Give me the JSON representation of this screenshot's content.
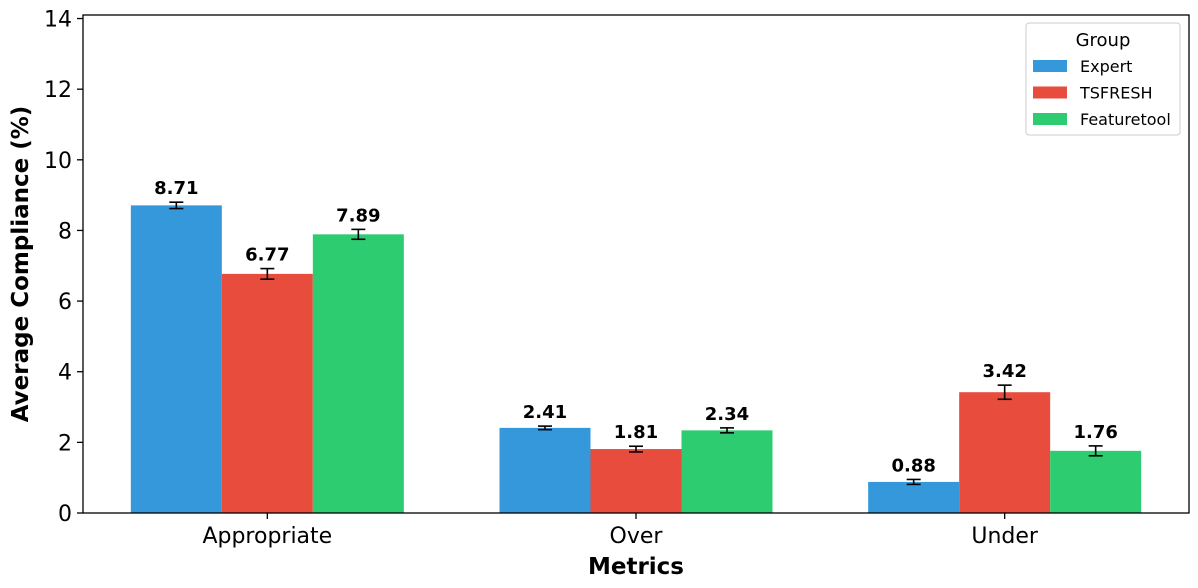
{
  "chart_data": {
    "type": "bar",
    "title": "",
    "xlabel": "Metrics",
    "ylabel": "Average Compliance (%)",
    "categories": [
      "Appropriate",
      "Over",
      "Under"
    ],
    "ylim": [
      0,
      14.1
    ],
    "yticks": [
      0,
      2,
      4,
      6,
      8,
      10,
      12,
      14
    ],
    "grid": false,
    "legend": {
      "title": "Group",
      "position": "top-right"
    },
    "series": [
      {
        "name": "Expert",
        "color": "#3498db",
        "values": [
          8.71,
          2.41,
          0.88
        ],
        "errors": [
          0.09,
          0.05,
          0.07
        ]
      },
      {
        "name": "TSFRESH",
        "color": "#e74c3c",
        "values": [
          6.77,
          1.81,
          3.42
        ],
        "errors": [
          0.15,
          0.08,
          0.2
        ]
      },
      {
        "name": "Featuretool",
        "color": "#2ecc71",
        "values": [
          7.89,
          2.34,
          1.76
        ],
        "errors": [
          0.14,
          0.07,
          0.14
        ]
      }
    ],
    "value_labels": [
      [
        "8.71",
        "2.41",
        "0.88"
      ],
      [
        "6.77",
        "1.81",
        "3.42"
      ],
      [
        "7.89",
        "2.34",
        "1.76"
      ]
    ]
  }
}
